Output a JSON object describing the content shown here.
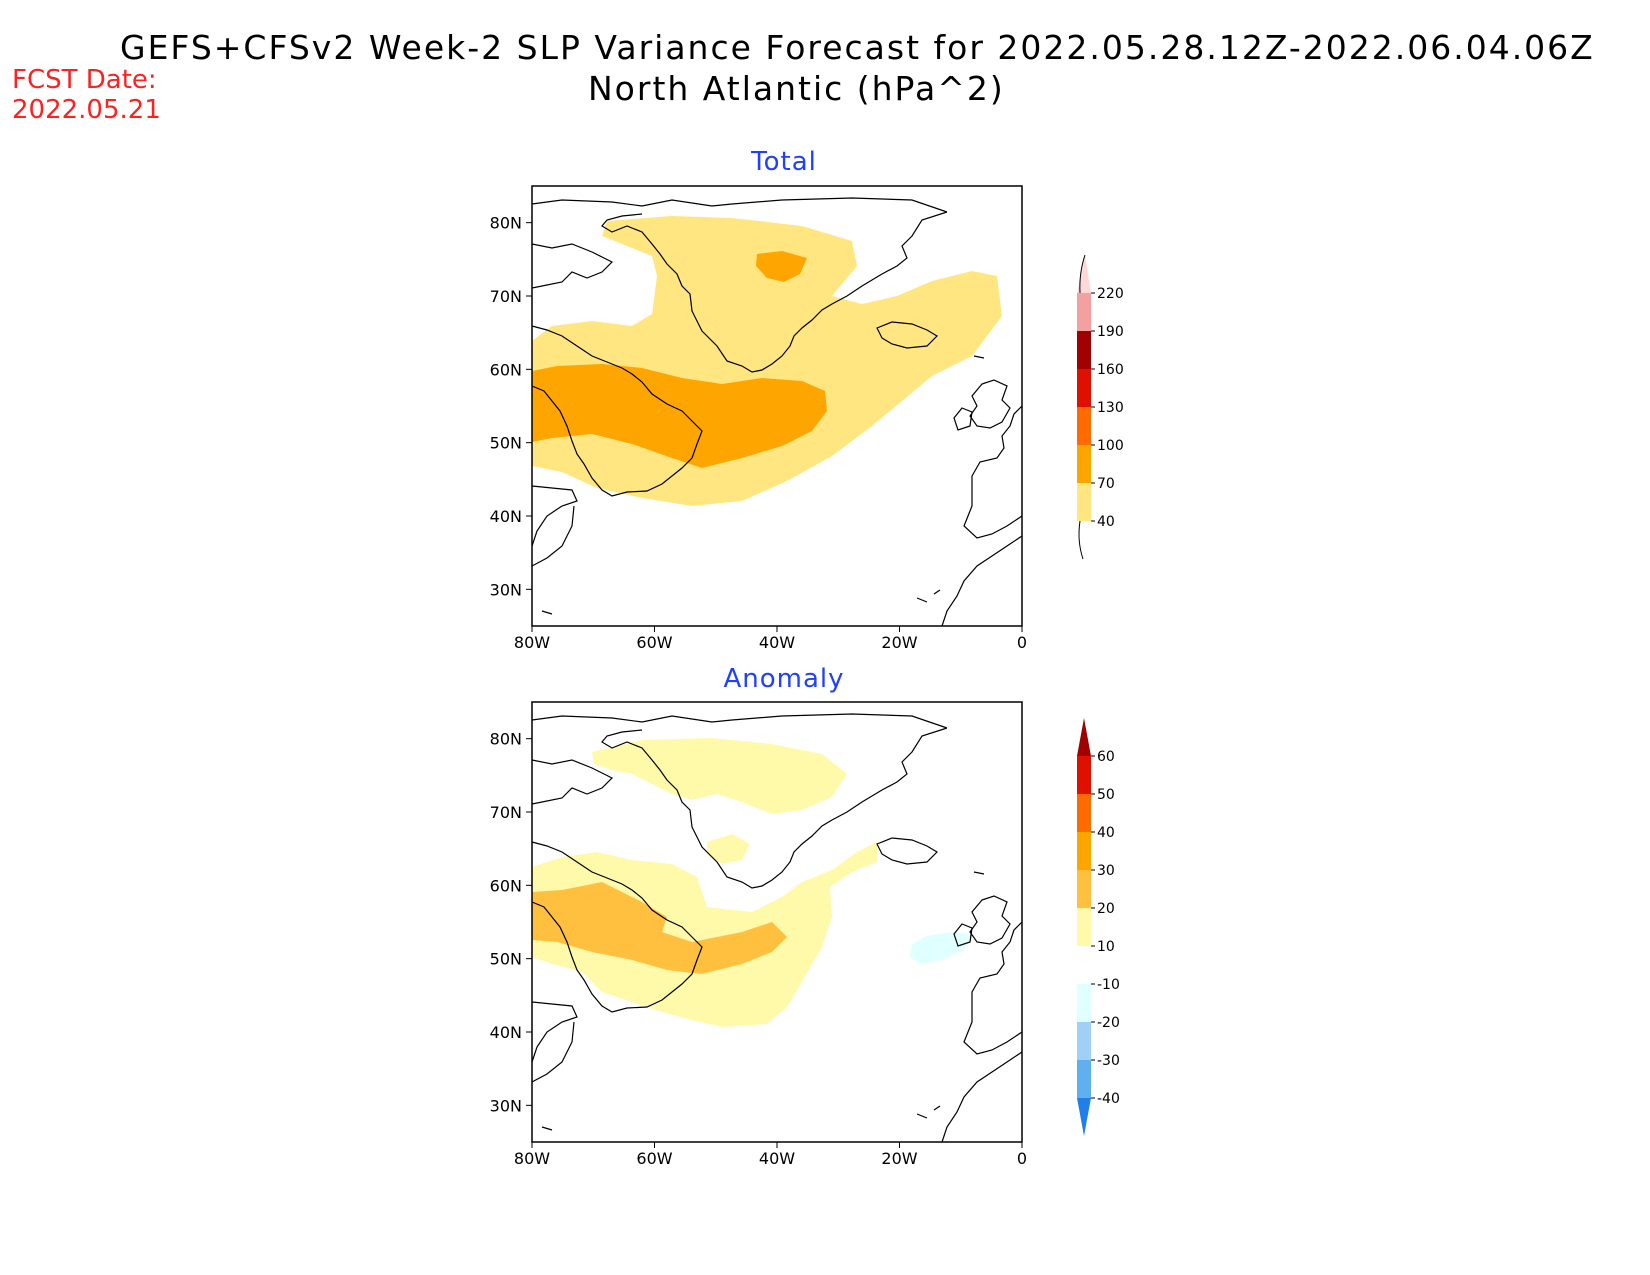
{
  "header": {
    "title_line1": "GEFS+CFSv2 Week-2 SLP Variance Forecast for 2022.05.28.12Z-2022.06.04.06Z",
    "title_line2": "North Atlantic (hPa^2)",
    "fcst_label": "FCST Date:",
    "fcst_date": "2022.05.21"
  },
  "axes": {
    "lat_labels": [
      "80N",
      "70N",
      "60N",
      "50N",
      "40N",
      "30N"
    ],
    "lat_values": [
      80,
      70,
      60,
      50,
      40,
      30
    ],
    "lon_labels": [
      "80W",
      "60W",
      "40W",
      "20W",
      "0"
    ],
    "lon_values": [
      -80,
      -60,
      -40,
      -20,
      0
    ],
    "lat_range": [
      25,
      85
    ],
    "lon_range": [
      -80,
      0
    ]
  },
  "panels": [
    {
      "title": "Total",
      "colorbar": {
        "labels": [
          "40",
          "70",
          "100",
          "130",
          "160",
          "190",
          "220"
        ],
        "colors": [
          "#ffe680",
          "#ffa500",
          "#ff6b00",
          "#e01000",
          "#a00000",
          "#f4a0a0",
          "#ffd8d8"
        ]
      }
    },
    {
      "title": "Anomaly",
      "colorbar": {
        "labels": [
          "60",
          "50",
          "40",
          "30",
          "20",
          "10",
          "-10",
          "-20",
          "-30",
          "-40"
        ],
        "colors": [
          "#a00000",
          "#e01000",
          "#ff6b00",
          "#ffa500",
          "#ffc040",
          "#fffaaa",
          "#ffffff",
          "#e0ffff",
          "#a0d0f8",
          "#60b0f0",
          "#2080e8"
        ]
      }
    }
  ]
}
